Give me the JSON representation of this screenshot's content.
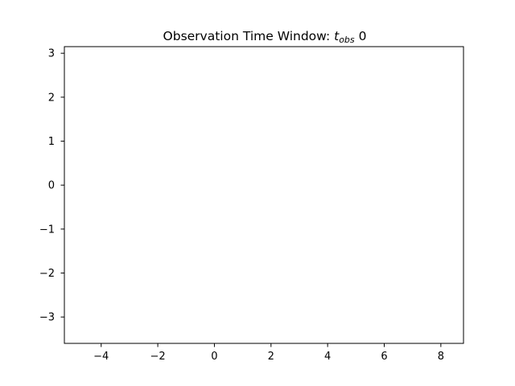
{
  "chart_data": {
    "type": "scatter",
    "title_prefix": "Observation Time Window: ",
    "title_var": "t",
    "title_sub": "obs",
    "title_suffix": " 0",
    "xlabel": "",
    "ylabel": "",
    "xlim": [
      -5.3,
      8.8
    ],
    "ylim": [
      -3.6,
      3.15
    ],
    "xticks": [
      -4,
      -2,
      0,
      2,
      4,
      6,
      8
    ],
    "yticks": [
      -3,
      -2,
      -1,
      0,
      1,
      2,
      3
    ],
    "xtick_labels": [
      "−4",
      "−2",
      "0",
      "2",
      "4",
      "6",
      "8"
    ],
    "ytick_labels": [
      "−3",
      "−2",
      "−1",
      "0",
      "1",
      "2",
      "3"
    ],
    "grid": false,
    "legend": "none",
    "series": [],
    "frame_color": "#000000",
    "background": "#ffffff"
  }
}
